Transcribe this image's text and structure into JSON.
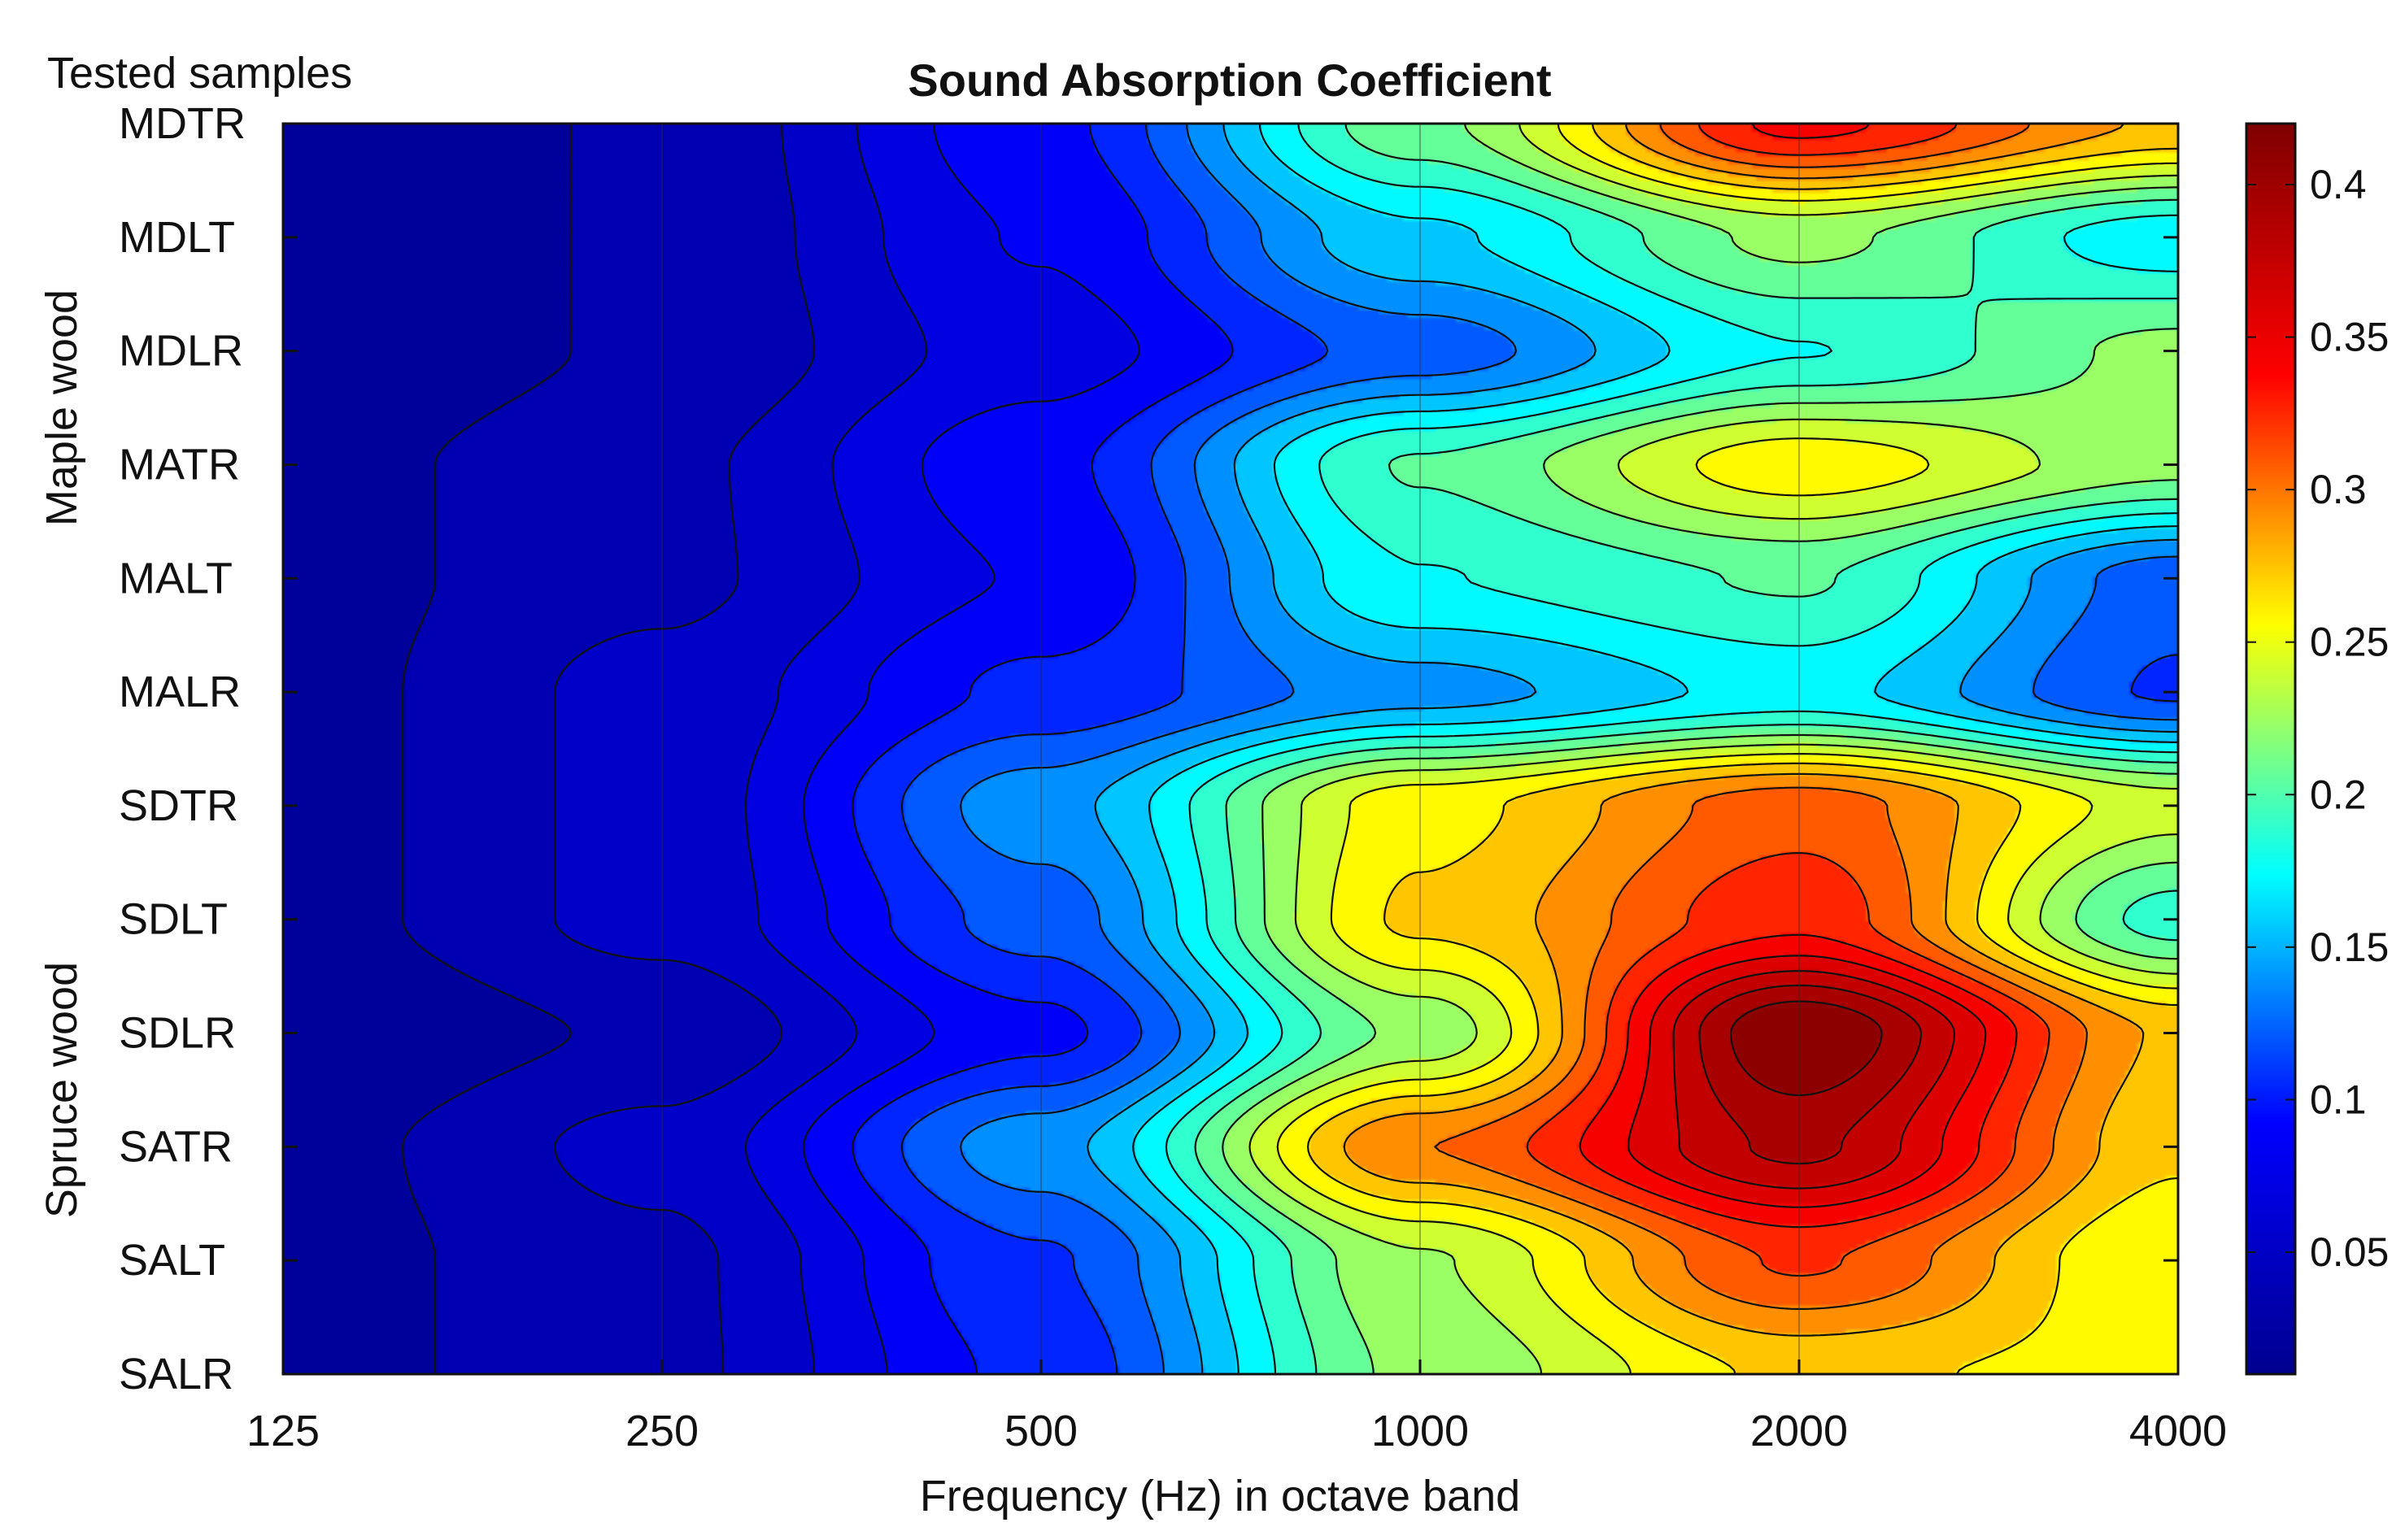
{
  "chart_data": {
    "type": "heatmap",
    "title": "Sound Absorption Coefficient",
    "corner_label": "Tested samples",
    "xlabel": "Frequency (Hz) in octave band",
    "x": [
      "125",
      "250",
      "500",
      "1000",
      "2000",
      "4000"
    ],
    "groups": [
      {
        "name": "Maple wood",
        "rows": [
          "MDTR",
          "MDLT",
          "MDLR",
          "MATR",
          "MALT",
          "MALR"
        ]
      },
      {
        "name": "Spruce wood",
        "rows": [
          "SDTR",
          "SDLT",
          "SDLR",
          "SATR",
          "SALT",
          "SALR"
        ]
      }
    ],
    "y": [
      "MDTR",
      "MDLT",
      "MDLR",
      "MATR",
      "MALT",
      "MALR",
      "SDTR",
      "SDLT",
      "SDLR",
      "SATR",
      "SALT",
      "SALR"
    ],
    "values": [
      [
        0.01,
        0.03,
        0.09,
        0.21,
        0.34,
        0.28
      ],
      [
        0.01,
        0.03,
        0.08,
        0.16,
        0.22,
        0.17
      ],
      [
        0.01,
        0.03,
        0.07,
        0.12,
        0.18,
        0.22
      ],
      [
        0.02,
        0.04,
        0.09,
        0.2,
        0.26,
        0.22
      ],
      [
        0.02,
        0.04,
        0.08,
        0.18,
        0.2,
        0.12
      ],
      [
        0.02,
        0.05,
        0.1,
        0.14,
        0.17,
        0.11
      ],
      [
        0.02,
        0.05,
        0.14,
        0.26,
        0.31,
        0.24
      ],
      [
        0.02,
        0.05,
        0.12,
        0.27,
        0.33,
        0.19
      ],
      [
        0.01,
        0.03,
        0.09,
        0.22,
        0.42,
        0.28
      ],
      [
        0.02,
        0.05,
        0.14,
        0.3,
        0.39,
        0.27
      ],
      [
        0.02,
        0.04,
        0.11,
        0.23,
        0.32,
        0.25
      ],
      [
        0.02,
        0.04,
        0.1,
        0.22,
        0.27,
        0.26
      ]
    ],
    "colorbar": {
      "min": 0.01,
      "max": 0.42,
      "ticks": [
        "0.05",
        "0.1",
        "0.15",
        "0.2",
        "0.25",
        "0.3",
        "0.35",
        "0.4"
      ]
    },
    "colormap": "jet",
    "colormap_stops": [
      "#00008f",
      "#0000ff",
      "#00ffff",
      "#ffff00",
      "#ff0000",
      "#800000"
    ],
    "contour_levels": 24,
    "contour_line_color": "#111111"
  }
}
